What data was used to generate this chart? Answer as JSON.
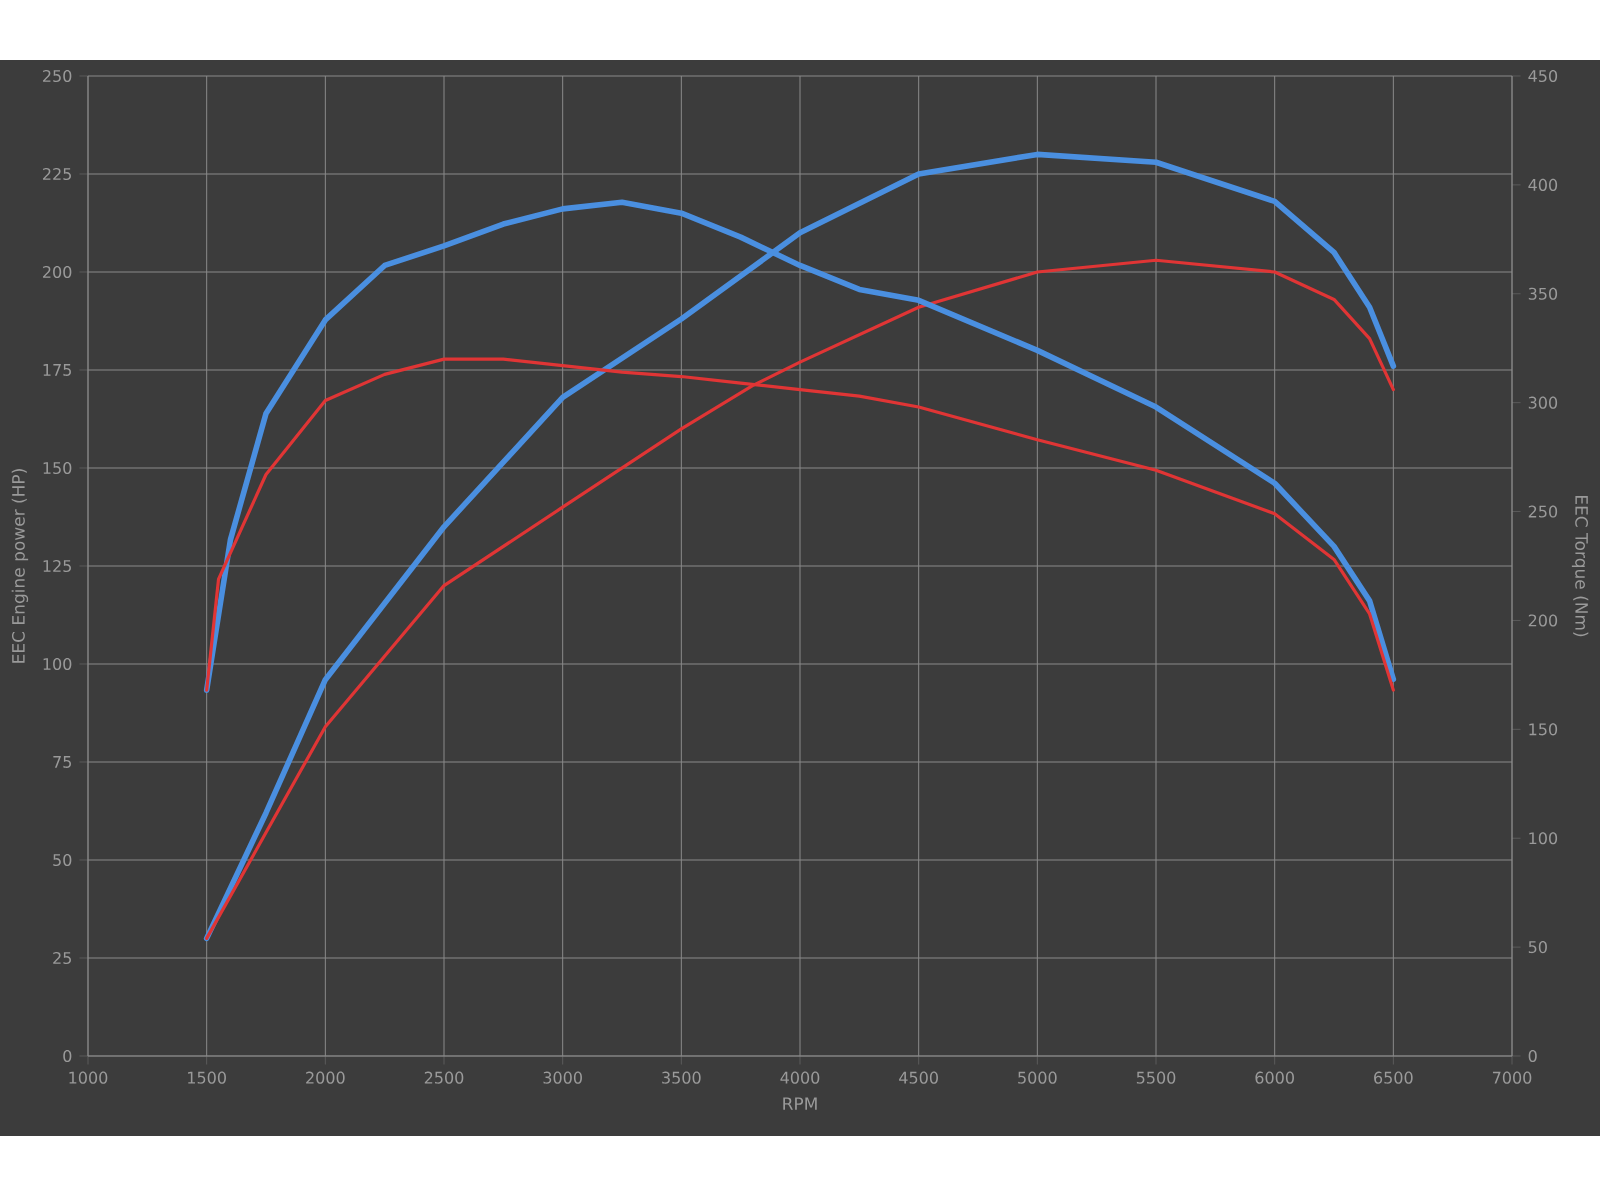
{
  "chart_data": {
    "type": "line",
    "xlabel": "RPM",
    "ylabel": "EEC Engine power (HP)",
    "y2label": "EEC Torque (Nm)",
    "xlim": [
      1000,
      7000
    ],
    "xticks": [
      1000,
      1500,
      2000,
      2500,
      3000,
      3500,
      4000,
      4500,
      5000,
      5500,
      6000,
      6500,
      7000
    ],
    "ylim": [
      0,
      250
    ],
    "yticks": [
      0,
      25,
      50,
      75,
      100,
      125,
      150,
      175,
      200,
      225,
      250
    ],
    "y2lim": [
      0,
      450
    ],
    "y2ticks": [
      0,
      50,
      100,
      150,
      200,
      250,
      300,
      350,
      400,
      450
    ],
    "grid": true,
    "series": [
      {
        "color": "#4a8fe0",
        "x": [
          1500,
          1750,
          2000,
          2500,
          3000,
          3500,
          4000,
          4500,
          5000,
          5500,
          6000,
          6250,
          6400,
          6500
        ],
        "values": [
          30,
          62,
          96,
          135,
          168,
          188,
          210,
          225,
          230,
          228,
          218,
          205,
          191,
          176
        ]
      },
      {
        "color": "#e03535",
        "x": [
          1500,
          1750,
          2000,
          2500,
          3000,
          3500,
          3800,
          4000,
          4500,
          5000,
          5500,
          6000,
          6250,
          6400,
          6500
        ],
        "values": [
          30,
          57,
          84,
          120,
          140,
          160,
          171,
          177,
          191,
          200,
          203,
          200,
          193,
          183,
          170
        ]
      },
      {
        "color": "#4a8fe0",
        "axis": "y2",
        "x": [
          1500,
          1600,
          1750,
          2000,
          2250,
          2500,
          2750,
          3000,
          3250,
          3500,
          3750,
          4000,
          4250,
          4500,
          5000,
          5500,
          6000,
          6250,
          6400,
          6500
        ],
        "values": [
          168,
          237,
          295,
          338,
          363,
          372,
          382,
          389,
          392,
          387,
          376,
          363,
          352,
          347,
          324,
          298,
          263,
          234,
          209,
          173
        ]
      },
      {
        "color": "#e03535",
        "axis": "y2",
        "x": [
          1500,
          1550,
          1750,
          2000,
          2250,
          2500,
          2750,
          3000,
          3250,
          3500,
          3750,
          4000,
          4250,
          4500,
          5000,
          5500,
          6000,
          6250,
          6400,
          6500
        ],
        "values": [
          168,
          219,
          267,
          301,
          313,
          320,
          320,
          317,
          314,
          312,
          309,
          306,
          303,
          298,
          283,
          269,
          249,
          228,
          203,
          168
        ]
      }
    ]
  }
}
